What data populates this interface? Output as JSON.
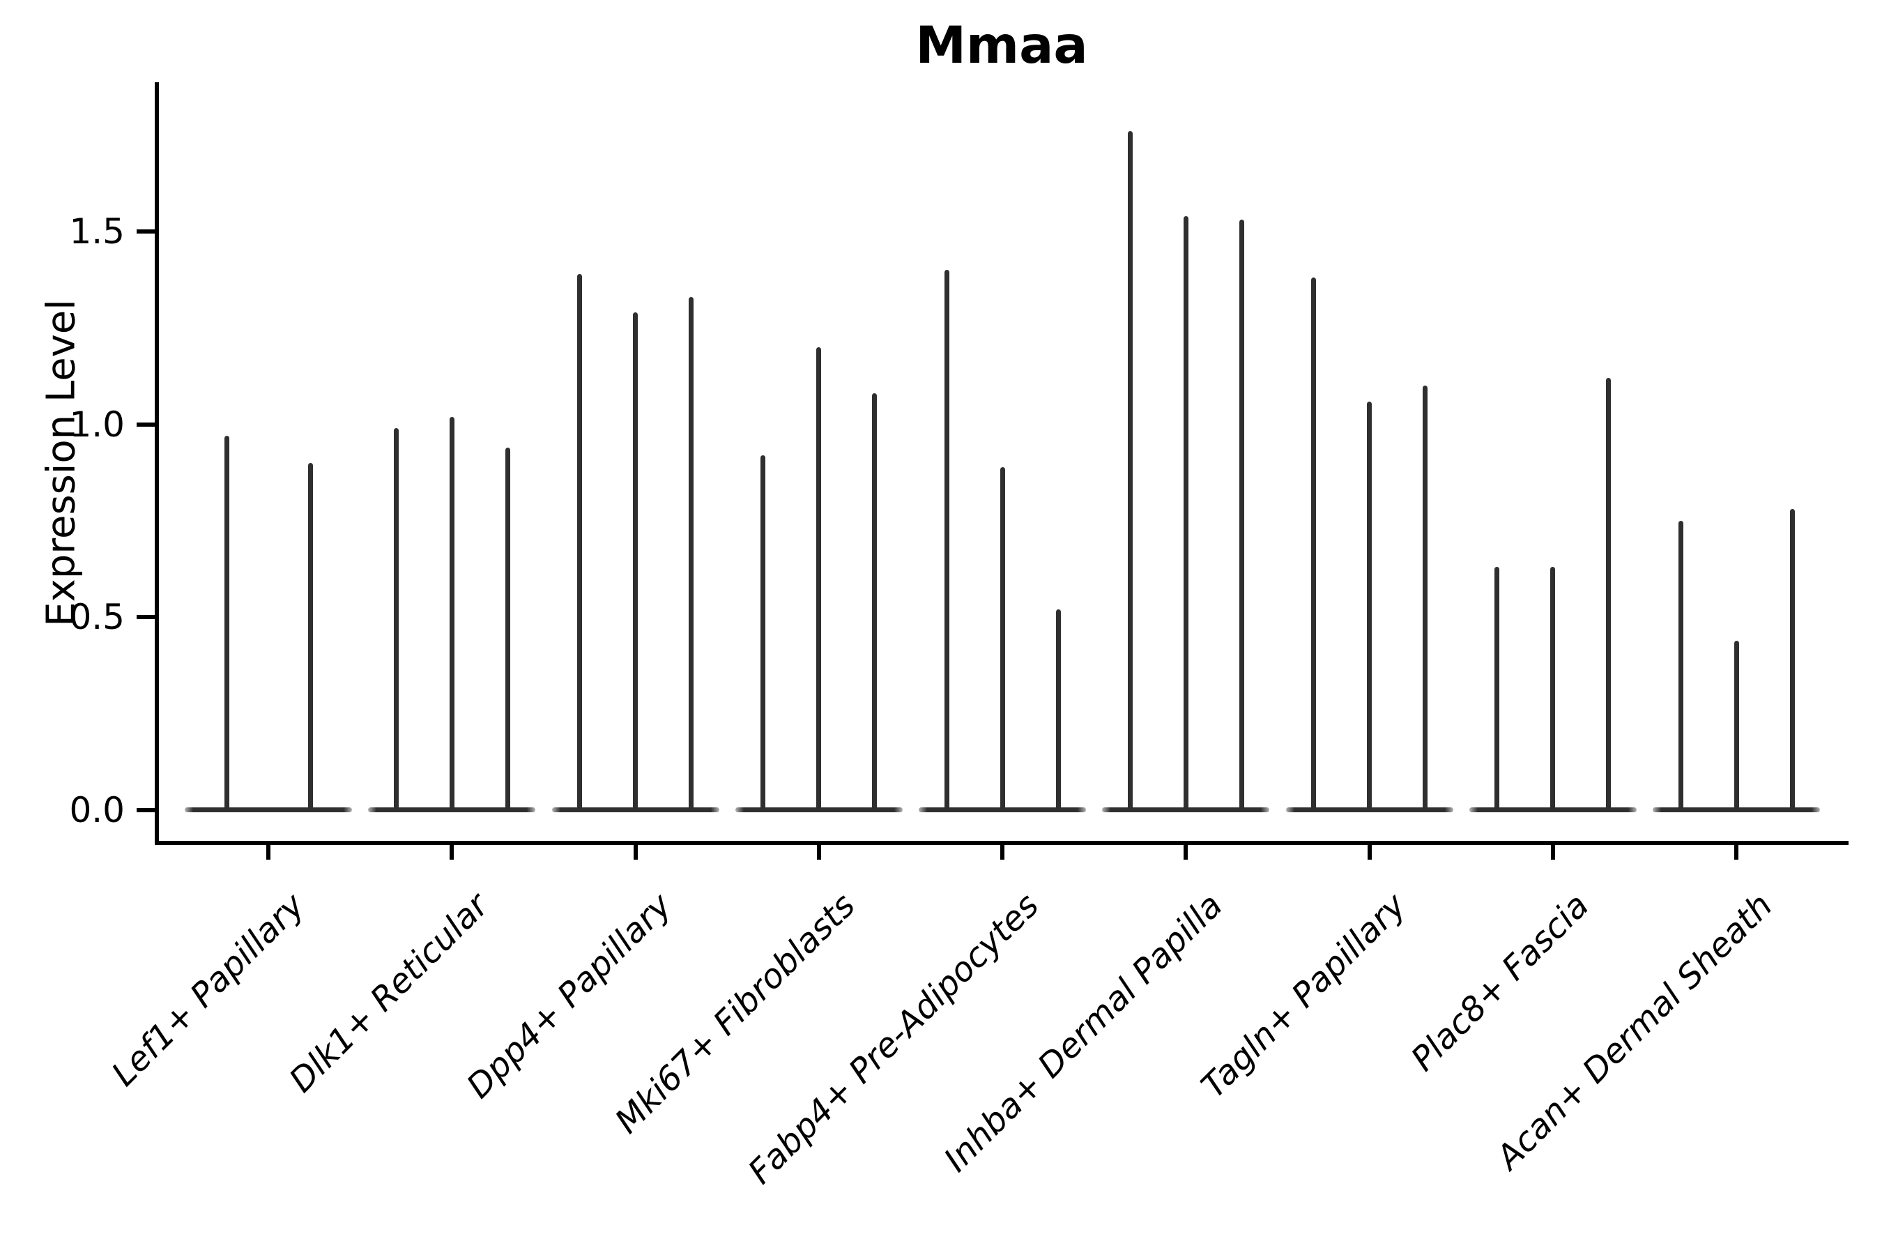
{
  "figure": {
    "title": "Mmaa",
    "y_axis_label": "Expression Level"
  },
  "chart_data": {
    "type": "violin",
    "title": "Mmaa",
    "xlabel": "",
    "ylabel": "Expression Level",
    "ylim": [
      -0.09,
      1.89
    ],
    "yticks": [
      0.0,
      0.5,
      1.0,
      1.5
    ],
    "ytick_labels": [
      "0.0",
      "0.5",
      "1.0",
      "1.5"
    ],
    "grid": false,
    "legend": "none",
    "violin_color": "#2f2f2f",
    "axis_color": "#000000",
    "baseline_value": 0.0,
    "note": "Each category shows narrow needle-like violins rising from a flat dense base at expression 0; values below are the peak (max) expression per violin.",
    "categories": [
      "Lef1+ Papillary",
      "Dlk1+ Reticular",
      "Dpp4+ Papillary",
      "Mki67+ Fibroblasts",
      "Fabp4+ Pre-Adipocytes",
      "Inhba+ Dermal Papilla",
      "Tagln+ Papillary",
      "Plac8+ Fascia",
      "Acan+ Dermal Sheath"
    ],
    "groups": [
      {
        "category": "Lef1+ Papillary",
        "violin_peaks": [
          0.97,
          0.9
        ]
      },
      {
        "category": "Dlk1+ Reticular",
        "violin_peaks": [
          0.99,
          1.02,
          0.94
        ]
      },
      {
        "category": "Dpp4+ Papillary",
        "violin_peaks": [
          1.39,
          1.29,
          1.33
        ]
      },
      {
        "category": "Mki67+ Fibroblasts",
        "violin_peaks": [
          0.92,
          1.2,
          1.08
        ]
      },
      {
        "category": "Fabp4+ Pre-Adipocytes",
        "violin_peaks": [
          1.4,
          0.89,
          0.52
        ]
      },
      {
        "category": "Inhba+ Dermal Papilla",
        "violin_peaks": [
          1.76,
          1.54,
          1.53
        ]
      },
      {
        "category": "Tagln+ Papillary",
        "violin_peaks": [
          1.38,
          1.06,
          1.1
        ]
      },
      {
        "category": "Plac8+ Fascia",
        "violin_peaks": [
          0.63,
          0.63,
          1.12
        ]
      },
      {
        "category": "Acan+ Dermal Sheath",
        "violin_peaks": [
          0.75,
          0.44,
          0.78
        ]
      }
    ]
  }
}
